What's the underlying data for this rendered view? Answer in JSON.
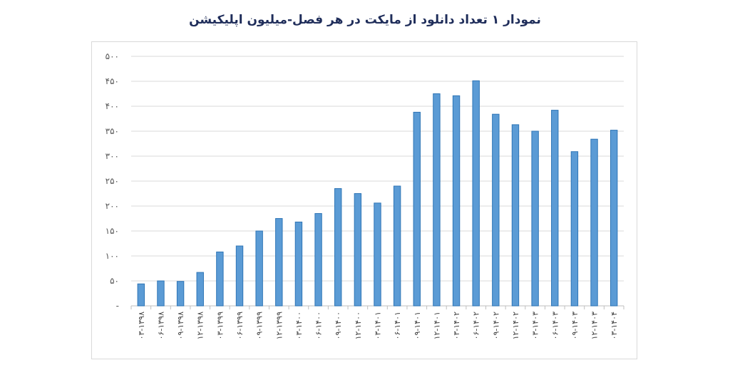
{
  "chart_data": {
    "type": "bar",
    "title": "نمودار ۱ تعداد دانلود از مایکت در هر فصل-میلیون اپلیکیشن",
    "xlabel": "",
    "ylabel": "",
    "ylim": [
      0,
      500
    ],
    "grid": true,
    "legend": "none",
    "y_ticks": [
      "-",
      "۵۰",
      "۱۰۰",
      "۱۵۰",
      "۲۰۰",
      "۲۵۰",
      "۳۰۰",
      "۳۵۰",
      "۴۰۰",
      "۴۵۰",
      "۵۰۰"
    ],
    "y_tick_values": [
      0,
      50,
      100,
      150,
      200,
      250,
      300,
      350,
      400,
      450,
      500
    ],
    "categories": [
      "۰۳-۱۳۹۸",
      "۰۶-۱۳۹۸",
      "۰۹-۱۳۹۸",
      "۱۲-۱۳۹۸",
      "۰۳-۱۳۹۹",
      "۰۶-۱۳۹۹",
      "۰۹-۱۳۹۹",
      "۱۲-۱۳۹۹",
      "۰۳-۱۴۰۰",
      "۰۶-۱۴۰۰",
      "۰۹-۱۴۰۰",
      "۱۲-۱۴۰۰",
      "۰۳-۱۴۰۱",
      "۰۶-۱۴۰۱",
      "۰۹-۱۴۰۱",
      "۱۲-۱۴۰۱",
      "۰۳-۱۴۰۲",
      "۰۶-۱۴۰۲",
      "۰۹-۱۴۰۲",
      "۱۲-۱۴۰۲",
      "۰۳-۱۴۰۳",
      "۰۶-۱۴۰۳",
      "۰۹-۱۴۰۳",
      "۱۲-۱۴۰۳",
      "۰۳-۱۴۰۴"
    ],
    "values": [
      44,
      50,
      49,
      67,
      108,
      120,
      150,
      175,
      168,
      185,
      235,
      225,
      206,
      240,
      388,
      425,
      421,
      451,
      384,
      363,
      350,
      392,
      309,
      334,
      352
    ],
    "colors": {
      "bar_fill": "#5b9bd5",
      "bar_stroke": "#2e75b6",
      "grid": "#d9d9d9",
      "axis": "#bfbfbf"
    }
  }
}
